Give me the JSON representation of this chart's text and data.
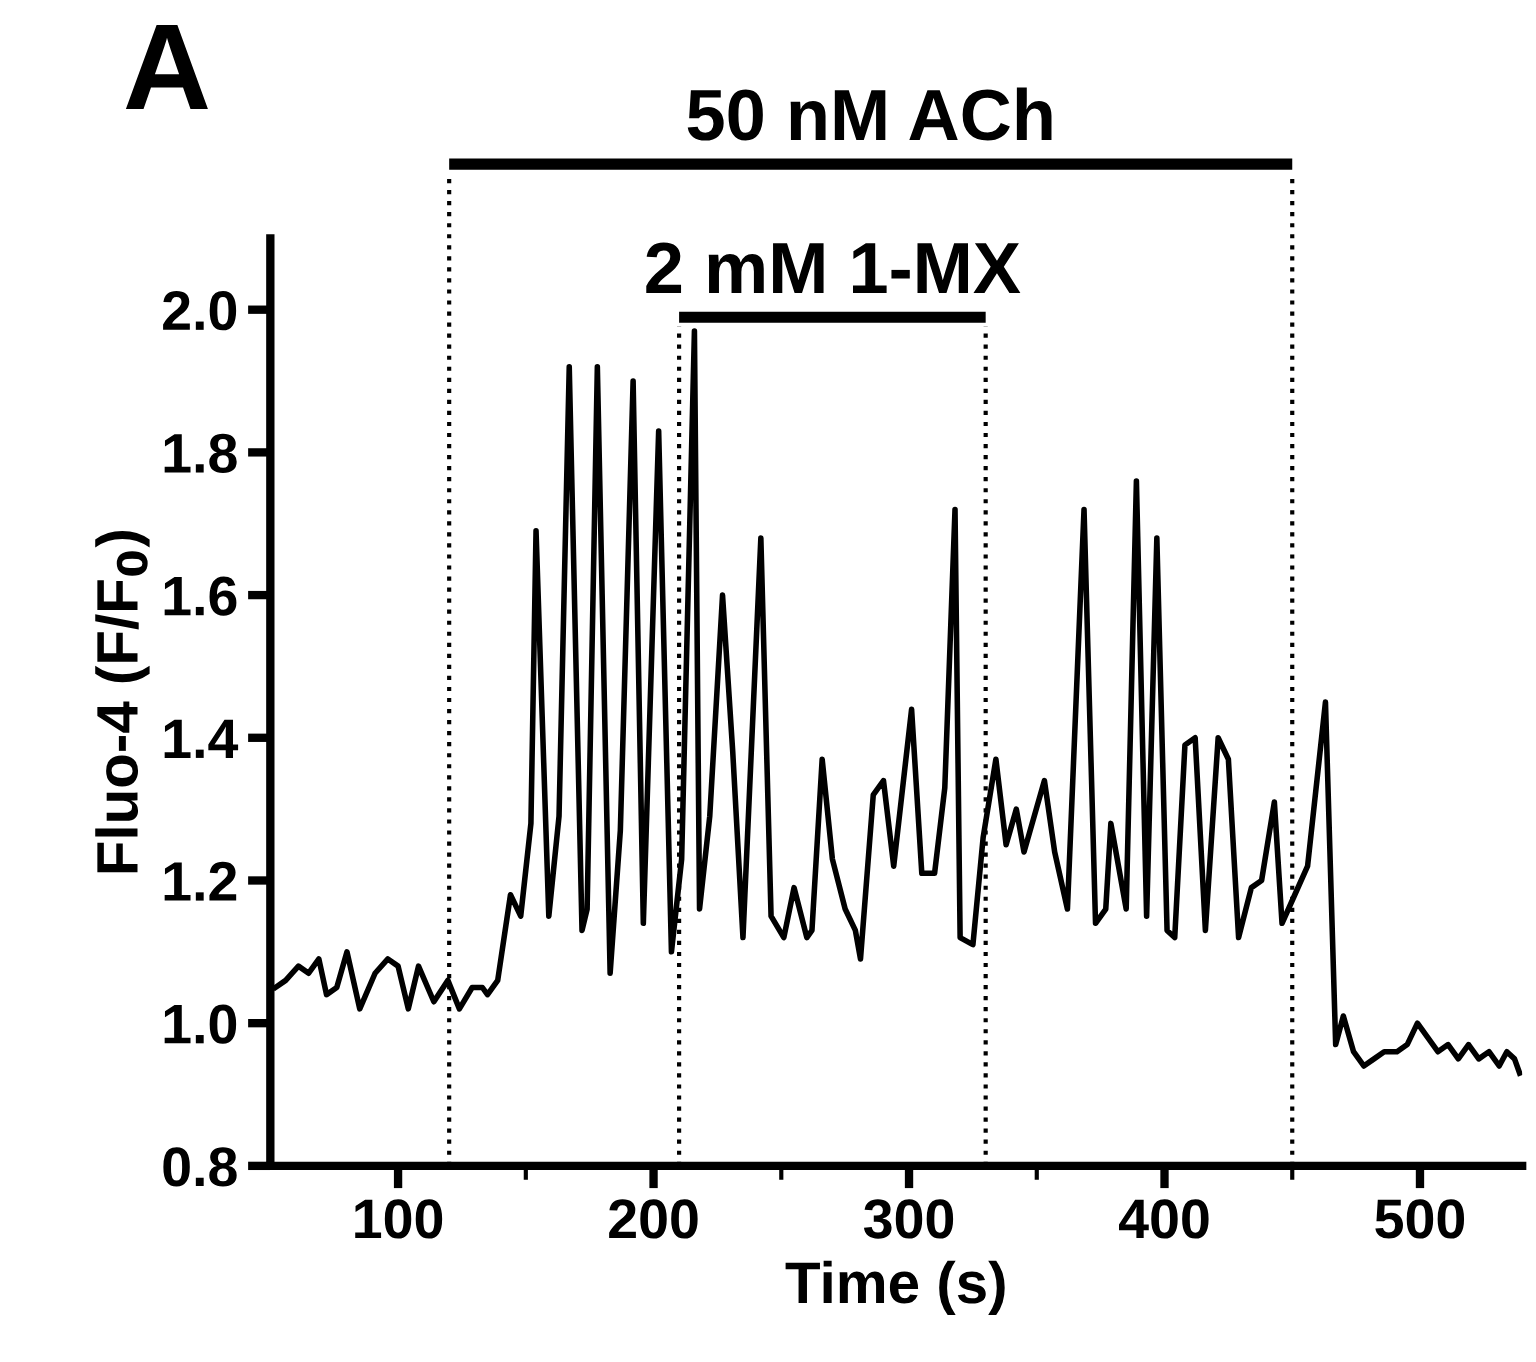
{
  "chart_data": {
    "type": "line",
    "title": "A",
    "xlabel": "Time (s)",
    "ylabel": "Fluo-4 (F/F$_{0}$)",
    "xlim": [
      50,
      540
    ],
    "ylim": [
      0.8,
      2.1
    ],
    "xticks": [
      100,
      {
        "value": 150,
        "label": null
      },
      200,
      {
        "value": 250,
        "label": null
      },
      300,
      {
        "value": 350,
        "label": null
      },
      400,
      {
        "value": 450,
        "label": null
      },
      500
    ],
    "yticks": [
      0.8,
      {
        "value": 1.0,
        "label": "1.0"
      },
      1.2,
      1.4,
      1.6,
      1.8,
      {
        "value": 2.0,
        "label": "2.0"
      }
    ],
    "grid": false,
    "legend": false,
    "marker": "none",
    "line_style": "solid",
    "ref_lines": [
      {
        "axis": "x",
        "value": 120,
        "color": "#000000",
        "line_style": "dotted"
      },
      {
        "axis": "x",
        "value": 210,
        "color": "#000000",
        "line_style": "dotted"
      },
      {
        "axis": "x",
        "value": 330,
        "color": "#000000",
        "line_style": "dotted"
      },
      {
        "axis": "x",
        "value": 450,
        "color": "#000000",
        "line_style": "dotted"
      }
    ],
    "annotations": [
      "50 nM ACh",
      "2 mM 1-MX"
    ],
    "series": [
      {
        "color": "#000000",
        "x": [
          52,
          56,
          61,
          65,
          69,
          72,
          76,
          80,
          85,
          91,
          96,
          100,
          104,
          108,
          114,
          119.5,
          124,
          129,
          133,
          135,
          139,
          144,
          148,
          152,
          154,
          159,
          163,
          167,
          172,
          174,
          178,
          183,
          187,
          192,
          196,
          202,
          207,
          211,
          216,
          218,
          222,
          227,
          231,
          235,
          242,
          246,
          251,
          255,
          260,
          262,
          266,
          270,
          275,
          279,
          281,
          286,
          290,
          294,
          301,
          305,
          310,
          314,
          318,
          320,
          325,
          329,
          334,
          338,
          342,
          345,
          353,
          357,
          362,
          368.5,
          373,
          377,
          379,
          381,
          385,
          389,
          393,
          397,
          401,
          404,
          408,
          412,
          416,
          421,
          425,
          429,
          434,
          438,
          443,
          446,
          451,
          456,
          463,
          467,
          470,
          474,
          478,
          482,
          486,
          491,
          495,
          499,
          503,
          507,
          511,
          515,
          519,
          523,
          527,
          531,
          534,
          537,
          539
        ],
        "values": [
          1.05,
          1.06,
          1.08,
          1.07,
          1.09,
          1.04,
          1.05,
          1.1,
          1.02,
          1.07,
          1.09,
          1.08,
          1.02,
          1.08,
          1.03,
          1.06,
          1.02,
          1.05,
          1.05,
          1.04,
          1.06,
          1.18,
          1.15,
          1.28,
          1.69,
          1.15,
          1.29,
          1.92,
          1.13,
          1.16,
          1.92,
          1.07,
          1.27,
          1.9,
          1.14,
          1.83,
          1.1,
          1.23,
          1.97,
          1.16,
          1.29,
          1.6,
          1.38,
          1.12,
          1.68,
          1.15,
          1.12,
          1.19,
          1.12,
          1.13,
          1.37,
          1.23,
          1.16,
          1.13,
          1.09,
          1.32,
          1.34,
          1.22,
          1.44,
          1.21,
          1.21,
          1.33,
          1.72,
          1.12,
          1.11,
          1.26,
          1.37,
          1.25,
          1.3,
          1.24,
          1.34,
          1.24,
          1.16,
          1.72,
          1.14,
          1.16,
          1.28,
          1.24,
          1.16,
          1.76,
          1.15,
          1.68,
          1.13,
          1.12,
          1.39,
          1.4,
          1.13,
          1.4,
          1.37,
          1.12,
          1.19,
          1.2,
          1.31,
          1.14,
          1.18,
          1.22,
          1.45,
          0.97,
          1.01,
          0.96,
          0.94,
          0.95,
          0.96,
          0.96,
          0.97,
          1.0,
          0.98,
          0.96,
          0.97,
          0.95,
          0.97,
          0.95,
          0.96,
          0.94,
          0.96,
          0.95,
          0.93
        ]
      }
    ]
  }
}
